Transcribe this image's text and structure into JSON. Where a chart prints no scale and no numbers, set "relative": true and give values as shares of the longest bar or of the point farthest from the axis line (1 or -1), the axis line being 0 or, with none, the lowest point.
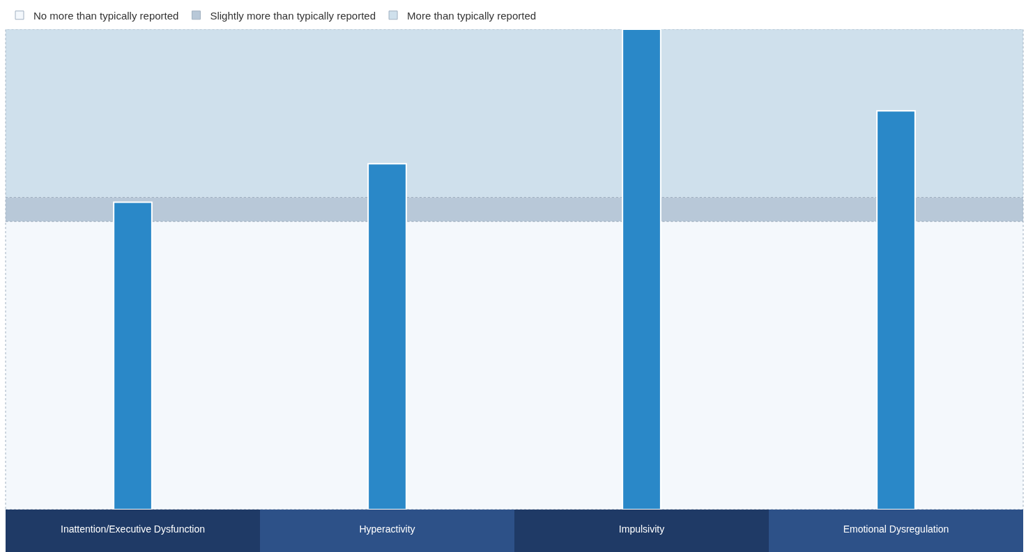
{
  "chart_data": {
    "type": "bar",
    "relative": true,
    "categories": [
      "Inattention/Executive Dysfunction",
      "Hyperactivity",
      "Impulsivity",
      "Emotional Dysregulation"
    ],
    "values": [
      0.64,
      0.72,
      1.0,
      0.83
    ],
    "color": "#2a88c8",
    "bands": [
      {
        "axis": "y",
        "from": 0,
        "to": 0.6,
        "label": "No more than typically reported",
        "color": "#f4f8fc"
      },
      {
        "axis": "y",
        "from": 0.6,
        "to": 0.65,
        "label": "Slightly more than typically reported",
        "color": "#b8c8d8"
      },
      {
        "axis": "y",
        "from": 0.65,
        "to": 1.0,
        "label": "More than typically reported",
        "color": "#cfe0ec"
      }
    ],
    "legend": "top left"
  }
}
